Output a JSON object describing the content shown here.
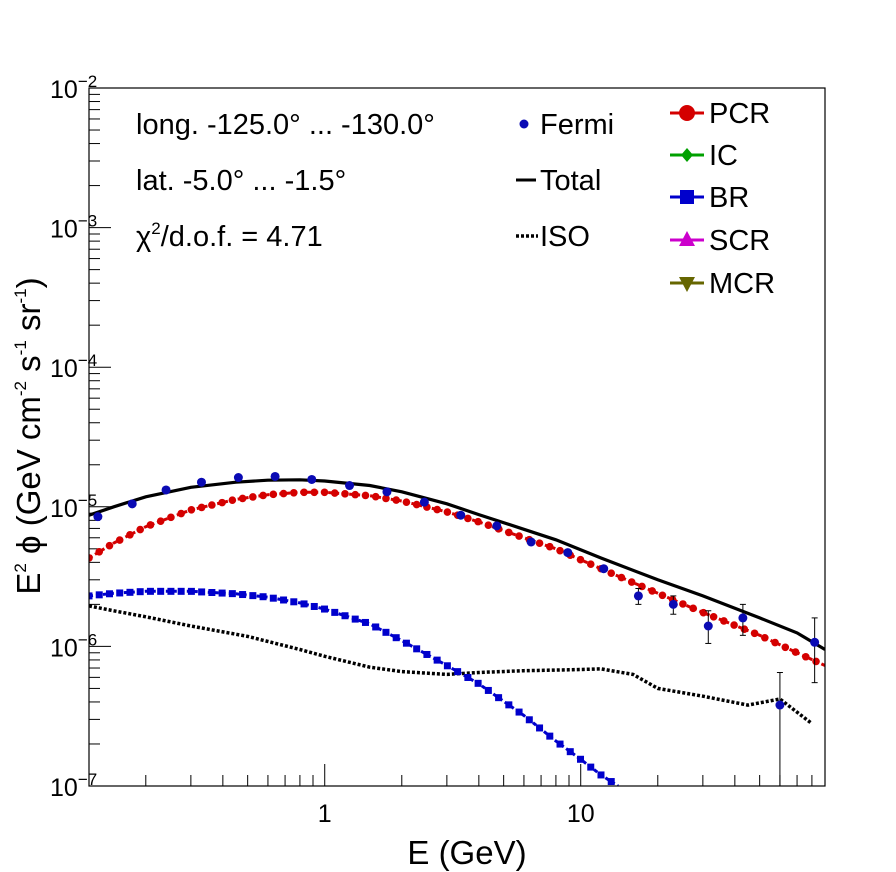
{
  "chart_data": {
    "type": "line",
    "log_x": true,
    "log_y": true,
    "xlim": [
      0.12,
      90
    ],
    "ylim": [
      1e-07,
      0.01
    ],
    "xlabel": "E (GeV)",
    "ylabel_parts": [
      "E",
      "2",
      " ϕ (GeV cm",
      "-2",
      " s",
      "-1",
      " sr",
      "-1",
      ")"
    ],
    "x_tick_labels": [
      {
        "value": 1,
        "label": "1"
      },
      {
        "value": 10,
        "label": "10"
      }
    ],
    "y_tick_labels": [
      {
        "value": 1e-07,
        "base": "10",
        "exp": "−7"
      },
      {
        "value": 1e-06,
        "base": "10",
        "exp": "−6"
      },
      {
        "value": 1e-05,
        "base": "10",
        "exp": "−5"
      },
      {
        "value": 0.0001,
        "base": "10",
        "exp": "−4"
      },
      {
        "value": 0.001,
        "base": "10",
        "exp": "−3"
      },
      {
        "value": 0.01,
        "base": "10",
        "exp": "−2"
      }
    ],
    "annotations": {
      "longitude": "long. -125.0° ... -130.0°",
      "latitude": "lat. -5.0° ... -1.5°",
      "chi_prefix": "χ",
      "chi_sup": "2",
      "chi_suffix": "/d.o.f. = 4.71"
    },
    "legend_left": [
      {
        "key": "fermi",
        "label": "Fermi"
      },
      {
        "key": "total",
        "label": "Total"
      },
      {
        "key": "iso",
        "label": "ISO"
      }
    ],
    "legend_right": [
      {
        "key": "pcr",
        "label": "PCR",
        "color": "#d40000",
        "marker": "circle"
      },
      {
        "key": "ic",
        "label": "IC",
        "color": "#00a000",
        "marker": "diamond"
      },
      {
        "key": "br",
        "label": "BR",
        "color": "#0000cc",
        "marker": "square"
      },
      {
        "key": "scr",
        "label": "SCR",
        "color": "#cc00cc",
        "marker": "triangle-up"
      },
      {
        "key": "mcr",
        "label": "MCR",
        "color": "#666600",
        "marker": "triangle-down"
      }
    ],
    "colors": {
      "fermi": "#0a0ab4",
      "total": "#000000",
      "iso": "#000000",
      "pcr": "#d40000",
      "br": "#0000cc"
    },
    "fermi": [
      {
        "x": 0.13,
        "y": 8.5e-06
      },
      {
        "x": 0.177,
        "y": 1.05e-05
      },
      {
        "x": 0.24,
        "y": 1.32e-05
      },
      {
        "x": 0.33,
        "y": 1.5e-05
      },
      {
        "x": 0.46,
        "y": 1.62e-05
      },
      {
        "x": 0.64,
        "y": 1.65e-05
      },
      {
        "x": 0.89,
        "y": 1.57e-05
      },
      {
        "x": 1.25,
        "y": 1.42e-05
      },
      {
        "x": 1.75,
        "y": 1.28e-05
      },
      {
        "x": 2.45,
        "y": 1.08e-05
      },
      {
        "x": 3.4,
        "y": 8.7e-06
      },
      {
        "x": 4.7,
        "y": 7.3e-06
      },
      {
        "x": 6.4,
        "y": 5.6e-06
      },
      {
        "x": 8.9,
        "y": 4.7e-06
      },
      {
        "x": 12.3,
        "y": 3.6e-06
      },
      {
        "x": 16.8,
        "y": 2.3e-06,
        "lo": 2e-06,
        "hi": 2.6e-06
      },
      {
        "x": 23,
        "y": 2e-06,
        "lo": 1.7e-06,
        "hi": 2.3e-06
      },
      {
        "x": 31.5,
        "y": 1.4e-06,
        "lo": 1.05e-06,
        "hi": 1.8e-06
      },
      {
        "x": 43,
        "y": 1.6e-06,
        "lo": 1.2e-06,
        "hi": 2e-06
      },
      {
        "x": 60,
        "y": 3.8e-07,
        "lo": 1e-07,
        "hi": 6.5e-07
      },
      {
        "x": 82,
        "y": 1.07e-06,
        "lo": 5.5e-07,
        "hi": 1.6e-06
      }
    ],
    "total": [
      {
        "x": 0.12,
        "y": 8.7e-06
      },
      {
        "x": 0.15,
        "y": 1e-05
      },
      {
        "x": 0.2,
        "y": 1.18e-05
      },
      {
        "x": 0.3,
        "y": 1.38e-05
      },
      {
        "x": 0.45,
        "y": 1.5e-05
      },
      {
        "x": 0.6,
        "y": 1.55e-05
      },
      {
        "x": 0.8,
        "y": 1.56e-05
      },
      {
        "x": 1.0,
        "y": 1.53e-05
      },
      {
        "x": 1.5,
        "y": 1.42e-05
      },
      {
        "x": 2.0,
        "y": 1.28e-05
      },
      {
        "x": 3.0,
        "y": 1.05e-05
      },
      {
        "x": 4.0,
        "y": 8.8e-06
      },
      {
        "x": 6.0,
        "y": 6.9e-06
      },
      {
        "x": 8.0,
        "y": 5.8e-06
      },
      {
        "x": 12.0,
        "y": 4.3e-06
      },
      {
        "x": 20.0,
        "y": 3e-06
      },
      {
        "x": 30.0,
        "y": 2.3e-06
      },
      {
        "x": 50.0,
        "y": 1.6e-06
      },
      {
        "x": 70.0,
        "y": 1.25e-06
      },
      {
        "x": 90.0,
        "y": 9.5e-07
      }
    ],
    "pcr": [
      {
        "x": 0.12,
        "y": 4.3e-06
      },
      {
        "x": 0.15,
        "y": 5.5e-06
      },
      {
        "x": 0.2,
        "y": 7.2e-06
      },
      {
        "x": 0.3,
        "y": 9.5e-06
      },
      {
        "x": 0.45,
        "y": 1.13e-05
      },
      {
        "x": 0.6,
        "y": 1.22e-05
      },
      {
        "x": 0.8,
        "y": 1.27e-05
      },
      {
        "x": 1.0,
        "y": 1.27e-05
      },
      {
        "x": 1.5,
        "y": 1.2e-05
      },
      {
        "x": 2.0,
        "y": 1.1e-05
      },
      {
        "x": 3.0,
        "y": 9.2e-06
      },
      {
        "x": 4.0,
        "y": 7.8e-06
      },
      {
        "x": 6.0,
        "y": 6e-06
      },
      {
        "x": 8.0,
        "y": 5e-06
      },
      {
        "x": 12.0,
        "y": 3.6e-06
      },
      {
        "x": 20.0,
        "y": 2.4e-06
      },
      {
        "x": 30.0,
        "y": 1.75e-06
      },
      {
        "x": 50.0,
        "y": 1.2e-06
      },
      {
        "x": 70.0,
        "y": 9e-07
      },
      {
        "x": 90.0,
        "y": 7.3e-07
      }
    ],
    "br": [
      {
        "x": 0.12,
        "y": 2.3e-06
      },
      {
        "x": 0.15,
        "y": 2.4e-06
      },
      {
        "x": 0.2,
        "y": 2.48e-06
      },
      {
        "x": 0.3,
        "y": 2.48e-06
      },
      {
        "x": 0.45,
        "y": 2.38e-06
      },
      {
        "x": 0.6,
        "y": 2.25e-06
      },
      {
        "x": 0.8,
        "y": 2.05e-06
      },
      {
        "x": 1.0,
        "y": 1.85e-06
      },
      {
        "x": 1.5,
        "y": 1.45e-06
      },
      {
        "x": 2.0,
        "y": 1.1e-06
      },
      {
        "x": 3.0,
        "y": 7.3e-07
      },
      {
        "x": 4.0,
        "y": 5.4e-07
      },
      {
        "x": 6.0,
        "y": 3.2e-07
      },
      {
        "x": 8.0,
        "y": 2.1e-07
      },
      {
        "x": 10.0,
        "y": 1.55e-07
      },
      {
        "x": 12.0,
        "y": 1.2e-07
      },
      {
        "x": 14.0,
        "y": 1e-07
      }
    ],
    "iso": [
      {
        "x": 0.12,
        "y": 1.95e-06
      },
      {
        "x": 0.15,
        "y": 1.8e-06
      },
      {
        "x": 0.2,
        "y": 1.63e-06
      },
      {
        "x": 0.3,
        "y": 1.4e-06
      },
      {
        "x": 0.5,
        "y": 1.18e-06
      },
      {
        "x": 0.8,
        "y": 9.5e-07
      },
      {
        "x": 1.0,
        "y": 8.5e-07
      },
      {
        "x": 1.5,
        "y": 7.1e-07
      },
      {
        "x": 2.0,
        "y": 6.6e-07
      },
      {
        "x": 3.0,
        "y": 6.3e-07
      },
      {
        "x": 4.0,
        "y": 6.5e-07
      },
      {
        "x": 6.0,
        "y": 6.7e-07
      },
      {
        "x": 9.0,
        "y": 6.8e-07
      },
      {
        "x": 12.0,
        "y": 6.9e-07
      },
      {
        "x": 16.0,
        "y": 6.3e-07
      },
      {
        "x": 20.0,
        "y": 5e-07
      },
      {
        "x": 30.0,
        "y": 4.4e-07
      },
      {
        "x": 45.0,
        "y": 3.8e-07
      },
      {
        "x": 60.0,
        "y": 4.2e-07
      },
      {
        "x": 80.0,
        "y": 2.8e-07
      }
    ]
  }
}
